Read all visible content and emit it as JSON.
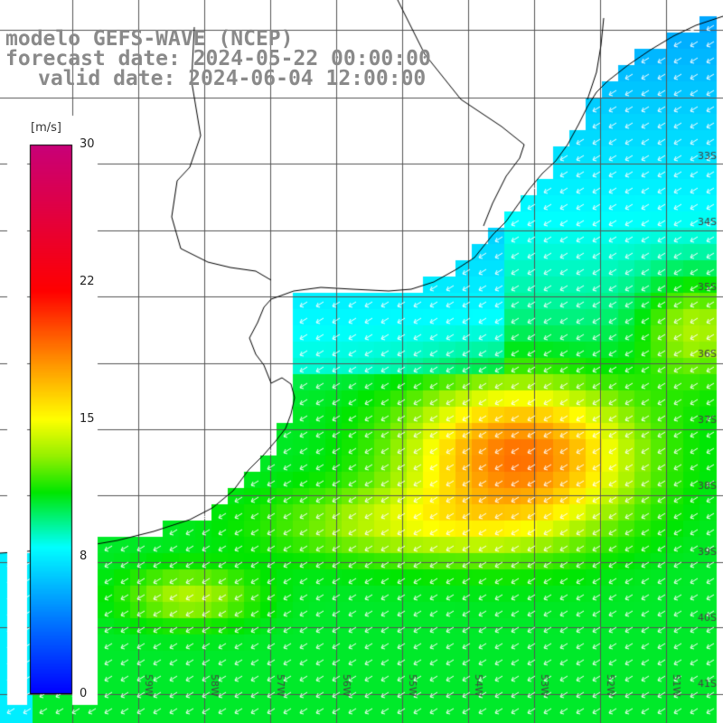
{
  "header": {
    "line1": "modelo GEFS-WAVE (NCEP)",
    "line2": "forecast date: 2024-05-22 00:00:00",
    "line3": "valid date: 2024-06-04 12:00:00"
  },
  "colorbar": {
    "unit": "[m/s]",
    "ticks": [
      "30",
      "22",
      "15",
      "8",
      "0"
    ],
    "min": 0,
    "max": 30
  },
  "lat_labels": [
    "33S",
    "34S",
    "35S",
    "36S",
    "37S",
    "38S",
    "39S",
    "40S",
    "41S"
  ],
  "lon_labels": [
    "60W",
    "59W",
    "58W",
    "57W",
    "56W",
    "55W",
    "54W",
    "53W",
    "52W",
    "51W"
  ],
  "colors": {
    "title": "#8a8a8a",
    "grid": "#555555",
    "coast": "#000000",
    "arrows": "#ffffff"
  },
  "chart_data": {
    "type": "heatmap",
    "variable": "wind speed",
    "unit": "m/s",
    "scale_range": [
      0,
      30
    ],
    "wind_direction": "from north-east (arrows pointing south-west)",
    "typical_values": {
      "coastal_rio_de_la_plata": 7,
      "open_ocean_north": 10,
      "max_offshore_core_near_38S_52W": 19,
      "south_area": 12
    }
  }
}
